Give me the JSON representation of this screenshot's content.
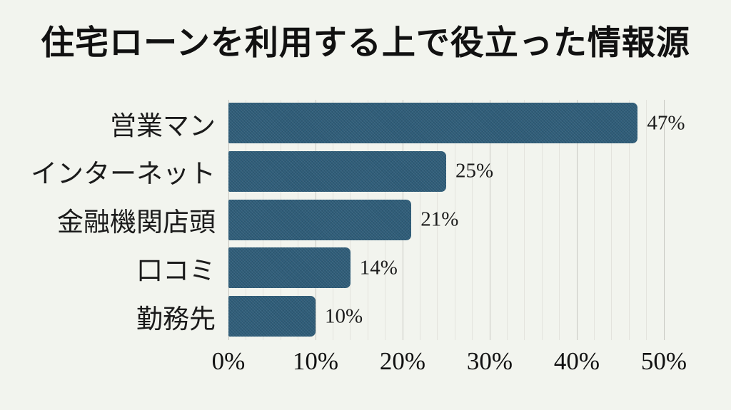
{
  "chart_data": {
    "type": "bar",
    "orientation": "horizontal",
    "title": "住宅ローンを利用する上で役立った情報源",
    "categories": [
      "営業マン",
      "インターネット",
      "金融機関店頭",
      "口コミ",
      "勤務先"
    ],
    "values": [
      47,
      25,
      21,
      14,
      10
    ],
    "value_labels": [
      "47%",
      "25%",
      "21%",
      "14%",
      "10%"
    ],
    "xlabel": "",
    "ylabel": "",
    "xlim": [
      0,
      50
    ],
    "x_ticks": [
      {
        "value": 0,
        "label": "0%"
      },
      {
        "value": 10,
        "label": "10%"
      },
      {
        "value": 20,
        "label": "20%"
      },
      {
        "value": 30,
        "label": "30%"
      },
      {
        "value": 40,
        "label": "40%"
      },
      {
        "value": 50,
        "label": "50%"
      }
    ],
    "minor_grid_step_percent": 2,
    "grid": true,
    "legend": false,
    "colors": {
      "background": "#f2f4ee",
      "bar": "#2f5d79",
      "major_gridline": "#c7c7c1",
      "minor_gridline": "#e3e3dd",
      "title_text": "#111111",
      "label_text": "#1b1b1b"
    }
  }
}
